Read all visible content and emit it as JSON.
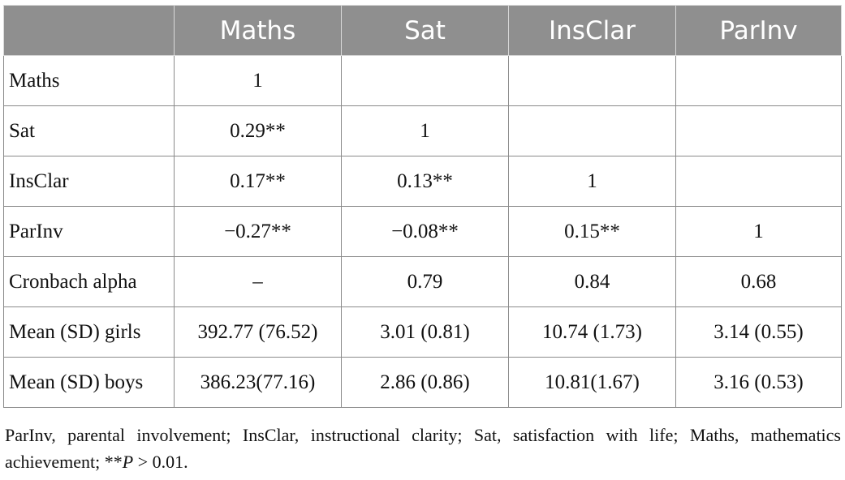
{
  "table": {
    "corner": "",
    "headers": [
      "Maths",
      "Sat",
      "InsClar",
      "ParInv"
    ],
    "rows": [
      {
        "label": "Maths",
        "cells": [
          "1",
          "",
          "",
          ""
        ]
      },
      {
        "label": "Sat",
        "cells": [
          "0.29**",
          "1",
          "",
          ""
        ]
      },
      {
        "label": "InsClar",
        "cells": [
          "0.17**",
          "0.13**",
          "1",
          ""
        ]
      },
      {
        "label": "ParInv",
        "cells": [
          "−0.27**",
          "−0.08**",
          "0.15**",
          "1"
        ]
      },
      {
        "label": "Cronbach alpha",
        "cells": [
          "–",
          "0.79",
          "0.84",
          "0.68"
        ]
      },
      {
        "label": "Mean (SD) girls",
        "cells": [
          "392.77 (76.52)",
          "3.01 (0.81)",
          "10.74 (1.73)",
          "3.14 (0.55)"
        ]
      },
      {
        "label": "Mean (SD) boys",
        "cells": [
          "386.23(77.16)",
          "2.86 (0.86)",
          "10.81(1.67)",
          "3.16 (0.53)"
        ]
      }
    ],
    "header_bg_color": "#8f8f8f",
    "header_text_color": "#ffffff",
    "border_color": "#8a8a8a"
  },
  "footnote": {
    "text_before": "ParInv, parental involvement; InsClar, instructional clarity; Sat, satisfaction with life; Maths, mathematics achievement; **",
    "italic": "P",
    "text_after": " > 0.01."
  }
}
